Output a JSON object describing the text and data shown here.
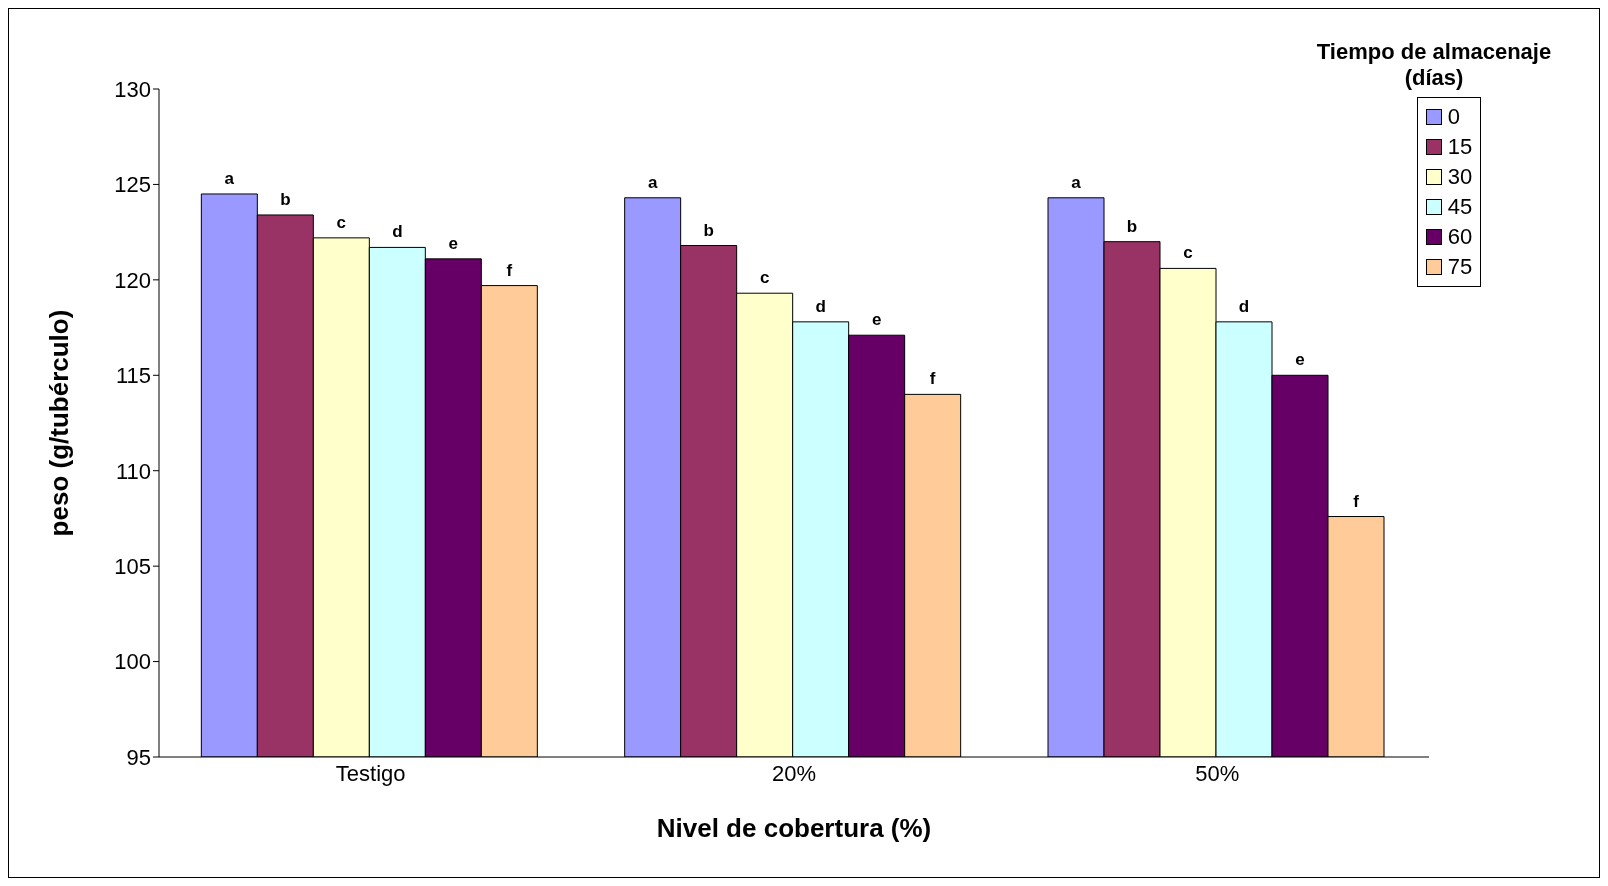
{
  "chart_data": {
    "type": "bar",
    "xlabel": "Nivel de cobertura (%)",
    "ylabel": "peso (g/tubérculo)",
    "legend_title": "Tiempo de almacenaje (días)",
    "legend": "top right",
    "grid": false,
    "categories": [
      "Testigo",
      "20%",
      "50%"
    ],
    "ylim": [
      95,
      130
    ],
    "yticks": [
      95,
      100,
      105,
      110,
      115,
      120,
      125,
      130
    ],
    "series": [
      {
        "name": "0",
        "color": "#9999ff",
        "values": [
          124.5,
          124.3,
          124.3
        ],
        "value_labels": [
          "a",
          "a",
          "a"
        ]
      },
      {
        "name": "15",
        "color": "#993366",
        "values": [
          123.4,
          121.8,
          122.0
        ],
        "value_labels": [
          "b",
          "b",
          "b"
        ]
      },
      {
        "name": "30",
        "color": "#ffffcc",
        "values": [
          122.2,
          119.3,
          120.6
        ],
        "value_labels": [
          "c",
          "c",
          "c"
        ]
      },
      {
        "name": "45",
        "color": "#ccffff",
        "values": [
          121.7,
          117.8,
          117.8
        ],
        "value_labels": [
          "d",
          "d",
          "d"
        ]
      },
      {
        "name": "60",
        "color": "#660066",
        "values": [
          121.1,
          117.1,
          115.0
        ],
        "value_labels": [
          "e",
          "e",
          "e"
        ]
      },
      {
        "name": "75",
        "color": "#ffcc99",
        "values": [
          119.7,
          114.0,
          107.6
        ],
        "value_labels": [
          "f",
          "f",
          "f"
        ]
      }
    ]
  }
}
